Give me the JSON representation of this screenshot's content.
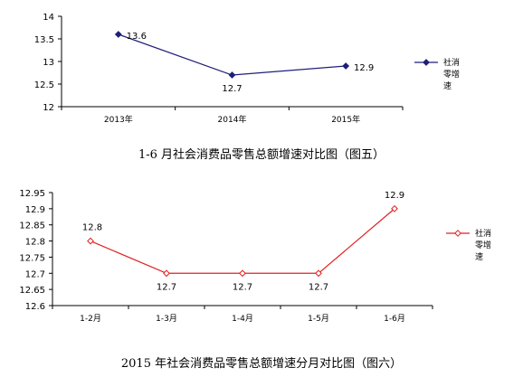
{
  "chart_data": [
    {
      "type": "line",
      "caption": "1-6 月社会消费品零售总额增速对比图（图五）",
      "categories": [
        "2013年",
        "2014年",
        "2015年"
      ],
      "series": [
        {
          "name": "社消零增速",
          "values": [
            13.6,
            12.7,
            12.9
          ],
          "color": "#1f1f7a",
          "marker": "diamond-filled"
        }
      ],
      "data_labels": [
        "13.6",
        "12.7",
        "12.9"
      ],
      "yticks": [
        "14",
        "13.5",
        "13",
        "12.5",
        "12"
      ],
      "ylim": [
        12,
        14
      ],
      "grid": false,
      "legend": "right"
    },
    {
      "type": "line",
      "caption": "2015 年社会消费品零售总额增速分月对比图（图六）",
      "categories": [
        "1-2月",
        "1-3月",
        "1-4月",
        "1-5月",
        "1-6月"
      ],
      "series": [
        {
          "name": "社消零增速",
          "values": [
            12.8,
            12.7,
            12.7,
            12.7,
            12.9
          ],
          "color": "#e02020",
          "marker": "diamond-open"
        }
      ],
      "data_labels": [
        "12.8",
        "12.7",
        "12.7",
        "12.7",
        "12.9"
      ],
      "yticks": [
        "12.95",
        "12.9",
        "12.85",
        "12.8",
        "12.75",
        "12.7",
        "12.65",
        "12.6"
      ],
      "ylim": [
        12.6,
        12.95
      ],
      "grid": false,
      "legend": "right"
    }
  ]
}
